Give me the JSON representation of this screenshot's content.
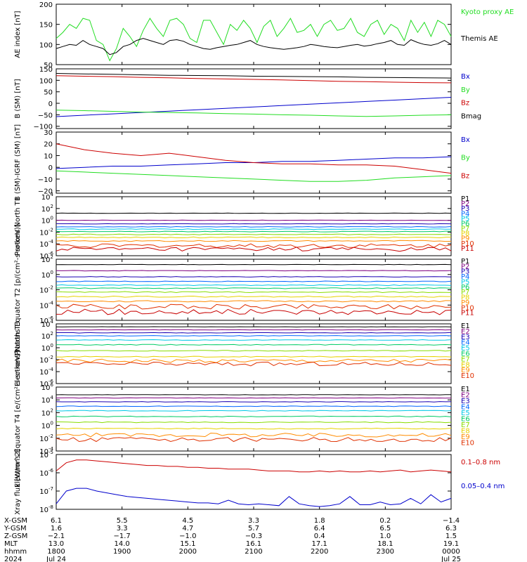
{
  "colors": {
    "black": "#000000",
    "green": "#22dd22",
    "blue": "#0000cc",
    "red": "#cc0000",
    "palette11": [
      "#000000",
      "#7f007f",
      "#1a00b3",
      "#0066ff",
      "#00c8e6",
      "#00cc66",
      "#88dd00",
      "#e6d200",
      "#ff8c00",
      "#e03000",
      "#c80000"
    ]
  },
  "time_axis": {
    "ticks": [
      {
        "label": "1800",
        "date": "Jul 24"
      },
      {
        "label": "1900",
        "date": ""
      },
      {
        "label": "2000",
        "date": ""
      },
      {
        "label": "2100",
        "date": ""
      },
      {
        "label": "2200",
        "date": ""
      },
      {
        "label": "2300",
        "date": ""
      },
      {
        "label": "0000",
        "date": "Jul 25"
      }
    ]
  },
  "orbit_table": {
    "rows": [
      {
        "name": "X-GSM",
        "values": [
          "6.1",
          "5.5",
          "4.5",
          "3.3",
          "1.8",
          "0.2",
          "-1.4"
        ]
      },
      {
        "name": "Y-GSM",
        "values": [
          "1.6",
          "3.3",
          "4.7",
          "5.7",
          "6.4",
          "6.5",
          "6.3"
        ]
      },
      {
        "name": "Z-GSM",
        "values": [
          "-2.1",
          "-1.7",
          "-1.0",
          "-0.3",
          "0.4",
          "1.0",
          "1.5"
        ]
      },
      {
        "name": "MLT",
        "values": [
          "13.0",
          "14.0",
          "15.1",
          "16.1",
          "17.1",
          "18.1",
          "19.1"
        ]
      },
      {
        "name": "hhmm",
        "values": [
          "1800",
          "1900",
          "2000",
          "2100",
          "2200",
          "2300",
          "0000"
        ]
      },
      {
        "name": "2024",
        "values": [
          "Jul 24",
          "",
          "",
          "",
          "",
          "",
          "Jul 25"
        ]
      }
    ]
  },
  "chart_data": [
    {
      "type": "line",
      "ylabel": "AE index [nT]",
      "ylim": [
        50,
        200
      ],
      "yticks": [
        50,
        100,
        150,
        200
      ],
      "yscale": "linear",
      "series": [
        {
          "name": "Kyoto proxy AE",
          "color": "#22dd22",
          "values": [
            115,
            130,
            150,
            140,
            165,
            160,
            110,
            100,
            60,
            90,
            140,
            120,
            95,
            135,
            165,
            140,
            120,
            160,
            165,
            150,
            115,
            105,
            160,
            160,
            130,
            100,
            150,
            135,
            160,
            140,
            105,
            145,
            160,
            120,
            140,
            165,
            130,
            135,
            150,
            120,
            150,
            160,
            135,
            140,
            165,
            130,
            120,
            150,
            160,
            125,
            150,
            140,
            110,
            160,
            130,
            155,
            120,
            160,
            150,
            120
          ]
        },
        {
          "name": "Themis AE",
          "color": "#000000",
          "values": [
            90,
            95,
            100,
            98,
            110,
            100,
            95,
            90,
            75,
            80,
            95,
            100,
            110,
            115,
            110,
            105,
            100,
            110,
            112,
            108,
            100,
            95,
            90,
            88,
            92,
            95,
            98,
            100,
            105,
            110,
            100,
            95,
            92,
            90,
            88,
            90,
            92,
            95,
            100,
            98,
            95,
            93,
            92,
            95,
            98,
            100,
            96,
            98,
            102,
            105,
            110,
            100,
            98,
            112,
            105,
            100,
            98,
            102,
            110,
            100
          ]
        }
      ]
    },
    {
      "type": "line",
      "ylabel": "B (SM) [nT]",
      "ylim": [
        -110,
        150
      ],
      "yticks": [
        -100,
        -50,
        0,
        50,
        100,
        150
      ],
      "yscale": "linear",
      "series": [
        {
          "name": "Bx",
          "color": "#0000cc",
          "values": [
            -58,
            -52,
            -46,
            -40,
            -34,
            -28,
            -22,
            -16,
            -10,
            -4,
            2,
            8,
            14,
            20,
            26
          ]
        },
        {
          "name": "By",
          "color": "#22dd22",
          "values": [
            -30,
            -32,
            -35,
            -38,
            -40,
            -42,
            -45,
            -47,
            -50,
            -52,
            -55,
            -57,
            -55,
            -52,
            -50
          ]
        },
        {
          "name": "Bz",
          "color": "#cc0000",
          "values": [
            120,
            118,
            116,
            113,
            111,
            108,
            106,
            104,
            102,
            99,
            96,
            94,
            92,
            90,
            89
          ]
        },
        {
          "name": "Bmag",
          "color": "#000000",
          "values": [
            130,
            128,
            126,
            124,
            122,
            121,
            120,
            118,
            117,
            116,
            115,
            113,
            112,
            111,
            110
          ]
        }
      ]
    },
    {
      "type": "line",
      "ylabel": "B (SM)-IGRF (SM) [nT]",
      "ylim": [
        -22,
        30
      ],
      "yticks": [
        -20,
        -10,
        0,
        10,
        20,
        30
      ],
      "yscale": "linear",
      "series": [
        {
          "name": "Bx",
          "color": "#0000cc",
          "values": [
            -1,
            0,
            1,
            1,
            2,
            3,
            4,
            4,
            5,
            5,
            6,
            7,
            8,
            8,
            9
          ]
        },
        {
          "name": "By",
          "color": "#22dd22",
          "values": [
            -3,
            -4,
            -5,
            -6,
            -7,
            -8,
            -9,
            -10,
            -11,
            -12,
            -12,
            -11,
            -9,
            -8,
            -7
          ]
        },
        {
          "name": "Bz",
          "color": "#cc0000",
          "values": [
            20,
            15,
            12,
            10,
            12,
            9,
            6,
            4,
            3,
            3,
            2,
            2,
            1,
            -2,
            -5
          ]
        }
      ]
    },
    {
      "type": "line",
      "ylabel": "Protons North T1",
      "ylim": [
        -6,
        4
      ],
      "yticks": [
        -6,
        -4,
        -2,
        0,
        2,
        4
      ],
      "yscale": "log10",
      "series": [
        {
          "name": "P1",
          "values": [
            1.2
          ]
        },
        {
          "name": "P2",
          "values": [
            0.0
          ]
        },
        {
          "name": "P3",
          "values": [
            -0.6
          ]
        },
        {
          "name": "P4",
          "values": [
            -1.1
          ]
        },
        {
          "name": "P5",
          "values": [
            -1.5
          ]
        },
        {
          "name": "P6",
          "values": [
            -1.9
          ]
        },
        {
          "name": "P7",
          "values": [
            -2.4
          ]
        },
        {
          "name": "P8",
          "values": [
            -2.9
          ]
        },
        {
          "name": "P9",
          "values": [
            -3.5
          ]
        },
        {
          "name": "P10",
          "values": [
            -4.3
          ]
        },
        {
          "name": "P11",
          "values": [
            -4.9
          ]
        }
      ]
    },
    {
      "type": "line",
      "ylabel": "Protons Equator T2 [p/(cm²-s-sr-keV)]",
      "ylim": [
        -6,
        2
      ],
      "yticks": [
        -6,
        -4,
        -2,
        0,
        2
      ],
      "yscale": "log10",
      "series": [
        {
          "name": "P1",
          "values": [
            1.3
          ]
        },
        {
          "name": "P2",
          "values": [
            0.5
          ]
        },
        {
          "name": "P3",
          "values": [
            -0.3
          ]
        },
        {
          "name": "P4",
          "values": [
            -0.9
          ]
        },
        {
          "name": "P5",
          "values": [
            -1.4
          ]
        },
        {
          "name": "P6",
          "values": [
            -1.8
          ]
        },
        {
          "name": "P7",
          "values": [
            -2.3
          ]
        },
        {
          "name": "P8",
          "values": [
            -2.9
          ]
        },
        {
          "name": "P9",
          "values": [
            -3.5
          ]
        },
        {
          "name": "P10",
          "values": [
            -4.2
          ]
        },
        {
          "name": "P11",
          "values": [
            -4.9
          ]
        }
      ]
    },
    {
      "type": "line",
      "ylabel": "Electrons North T3",
      "ylim": [
        -6,
        4
      ],
      "yticks": [
        -6,
        -4,
        -2,
        0,
        2,
        4
      ],
      "yscale": "log10",
      "series": [
        {
          "name": "E1",
          "values": [
            3.5
          ]
        },
        {
          "name": "E2",
          "values": [
            3.0
          ]
        },
        {
          "name": "E3",
          "values": [
            2.5
          ]
        },
        {
          "name": "E4",
          "values": [
            2.0
          ]
        },
        {
          "name": "E5",
          "values": [
            1.3
          ]
        },
        {
          "name": "E6",
          "values": [
            0.5
          ]
        },
        {
          "name": "E7",
          "values": [
            -0.5
          ]
        },
        {
          "name": "E8",
          "values": [
            -1.5
          ]
        },
        {
          "name": "E9",
          "values": [
            -2.2
          ]
        },
        {
          "name": "E10",
          "values": [
            -2.7
          ]
        }
      ]
    },
    {
      "type": "line",
      "ylabel": "Electrons Equator T4 [e/(cm²-s-sr-keV)]",
      "ylim": [
        -4,
        6
      ],
      "yticks": [
        -4,
        -2,
        0,
        2,
        4,
        6
      ],
      "yscale": "log10",
      "series": [
        {
          "name": "E1",
          "values": [
            4.8
          ]
        },
        {
          "name": "E2",
          "values": [
            4.3
          ]
        },
        {
          "name": "E3",
          "values": [
            3.7
          ]
        },
        {
          "name": "E4",
          "values": [
            3.0
          ]
        },
        {
          "name": "E5",
          "values": [
            2.3
          ]
        },
        {
          "name": "E6",
          "values": [
            1.4
          ]
        },
        {
          "name": "E7",
          "values": [
            0.5
          ]
        },
        {
          "name": "E8",
          "values": [
            -0.5
          ]
        },
        {
          "name": "E9",
          "values": [
            -1.5
          ]
        },
        {
          "name": "E10",
          "values": [
            -2.2
          ]
        }
      ]
    },
    {
      "type": "line",
      "ylabel": "Xray flux [W/m^2]",
      "ylim": [
        -8,
        -5
      ],
      "yticks": [
        -8,
        -7,
        -6,
        -5
      ],
      "yscale": "log10",
      "series": [
        {
          "name": "0.1–0.8 nm",
          "color": "#cc0000",
          "values": [
            -5.9,
            -5.45,
            -5.3,
            -5.3,
            -5.35,
            -5.4,
            -5.45,
            -5.5,
            -5.55,
            -5.6,
            -5.6,
            -5.65,
            -5.65,
            -5.7,
            -5.7,
            -5.75,
            -5.75,
            -5.8,
            -5.8,
            -5.8,
            -5.85,
            -5.9,
            -5.9,
            -5.9,
            -5.95,
            -5.95,
            -5.9,
            -5.95,
            -5.9,
            -5.95,
            -5.95,
            -5.9,
            -5.95,
            -5.9,
            -5.85,
            -5.95,
            -5.9,
            -5.85,
            -5.9,
            -5.95
          ]
        },
        {
          "name": "0.05–0.4 nm",
          "color": "#0000cc",
          "values": [
            -7.7,
            -7.0,
            -6.85,
            -6.85,
            -7.0,
            -7.1,
            -7.2,
            -7.3,
            -7.35,
            -7.4,
            -7.45,
            -7.5,
            -7.55,
            -7.6,
            -7.65,
            -7.65,
            -7.7,
            -7.5,
            -7.7,
            -7.75,
            -7.7,
            -7.75,
            -7.8,
            -7.3,
            -7.7,
            -7.8,
            -7.85,
            -7.8,
            -7.7,
            -7.3,
            -7.75,
            -7.75,
            -7.6,
            -7.75,
            -7.7,
            -7.4,
            -7.7,
            -7.2,
            -7.6,
            -7.4
          ]
        }
      ]
    }
  ]
}
